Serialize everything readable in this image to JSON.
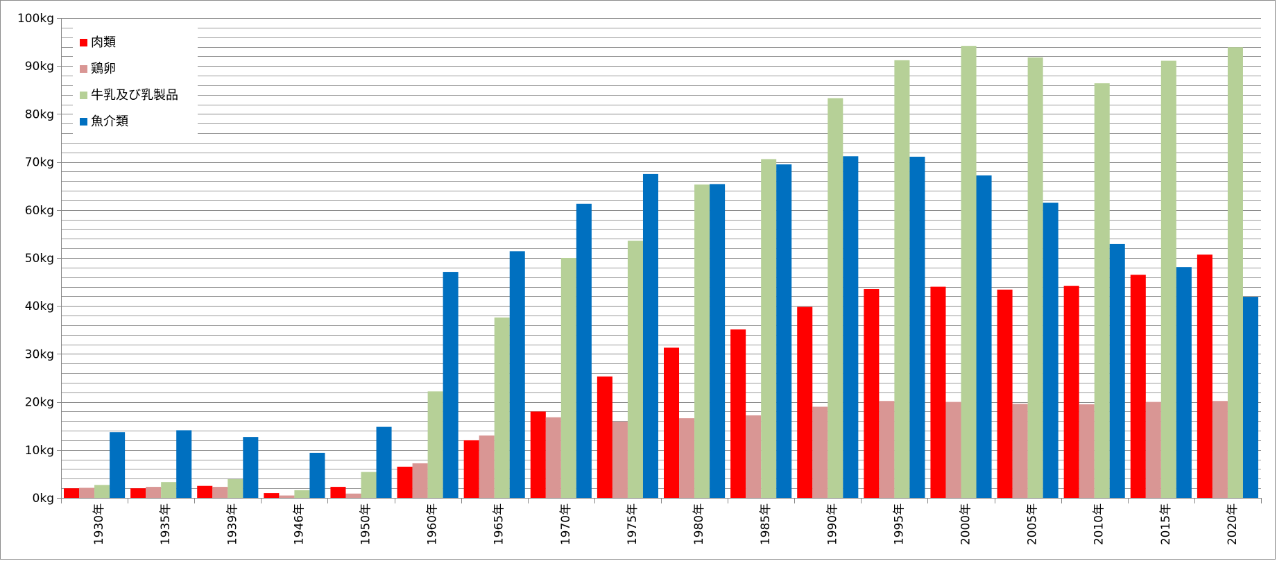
{
  "chart_data": {
    "type": "bar",
    "title": "",
    "xlabel": "",
    "ylabel": "",
    "ylim": [
      0,
      100
    ],
    "y_ticks": [
      "0kg",
      "10kg",
      "20kg",
      "30kg",
      "40kg",
      "50kg",
      "60kg",
      "70kg",
      "80kg",
      "90kg",
      "100kg"
    ],
    "grid": "horizontal, every 2kg",
    "legend_position": "top-left",
    "categories": [
      "1930年",
      "1935年",
      "1939年",
      "1946年",
      "1950年",
      "1960年",
      "1965年",
      "1970年",
      "1975年",
      "1980年",
      "1985年",
      "1990年",
      "1995年",
      "2000年",
      "2005年",
      "2010年",
      "2015年",
      "2020年"
    ],
    "series": [
      {
        "name": "肉類",
        "color": "#ff0000",
        "values": [
          2.0,
          2.0,
          2.5,
          1.0,
          2.3,
          6.5,
          12.0,
          18.0,
          25.3,
          31.3,
          35.1,
          39.8,
          43.5,
          44.0,
          43.4,
          44.2,
          46.5,
          50.7
        ]
      },
      {
        "name": "鶏卵",
        "color": "#d99694",
        "values": [
          2.1,
          2.3,
          2.3,
          0.5,
          0.9,
          7.2,
          13.0,
          16.8,
          15.9,
          16.6,
          17.2,
          19.0,
          20.2,
          20.0,
          19.6,
          19.5,
          20.0,
          20.2
        ]
      },
      {
        "name": "牛乳及び乳製品",
        "color": "#b6d097",
        "values": [
          2.7,
          3.3,
          3.9,
          1.6,
          5.4,
          22.2,
          37.6,
          50.0,
          53.6,
          65.3,
          70.6,
          83.3,
          91.2,
          94.2,
          91.8,
          86.4,
          91.1,
          93.9
        ]
      },
      {
        "name": "魚介類",
        "color": "#0070c0",
        "values": [
          13.7,
          14.1,
          12.7,
          9.4,
          14.8,
          47.1,
          51.4,
          61.3,
          67.5,
          65.4,
          69.5,
          71.2,
          71.1,
          67.2,
          61.5,
          52.9,
          48.1,
          41.9
        ]
      }
    ]
  }
}
